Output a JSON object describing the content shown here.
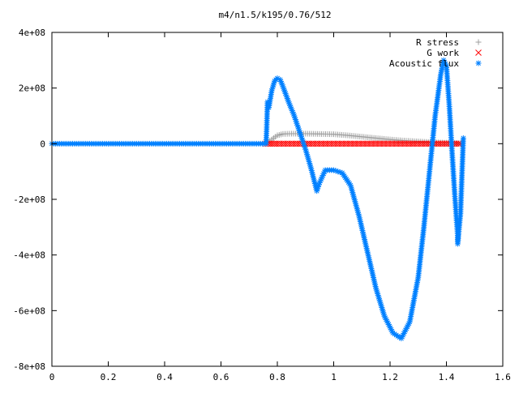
{
  "chart_data": {
    "type": "scatter",
    "title": "m4/n1.5/k195/0.76/512",
    "xlabel": "",
    "ylabel": "",
    "xlim": [
      0,
      1.6
    ],
    "ylim": [
      -800000000,
      400000000
    ],
    "x_ticks": [
      0,
      0.2,
      0.4,
      0.6,
      0.8,
      1.0,
      1.2,
      1.4,
      1.6
    ],
    "x_tick_labels": [
      "0",
      "0.2",
      "0.4",
      "0.6",
      "0.8",
      "1",
      "1.2",
      "1.4",
      "1.6"
    ],
    "y_ticks": [
      400000000,
      200000000,
      0,
      -200000000,
      -400000000,
      -600000000,
      -800000000
    ],
    "y_tick_labels": [
      "4e+08",
      "2e+08",
      "0",
      "-2e+08",
      "-4e+08",
      "-6e+08",
      "-8e+08"
    ],
    "grid": false,
    "legend_position": "top-right",
    "series": [
      {
        "name": "R stress",
        "marker": "plus",
        "color": "#a0a0a0",
        "points": [
          [
            0.76,
            0
          ],
          [
            0.78,
            15000000
          ],
          [
            0.8,
            30000000
          ],
          [
            0.82,
            35000000
          ],
          [
            0.85,
            36000000
          ],
          [
            0.9,
            36000000
          ],
          [
            0.95,
            35000000
          ],
          [
            1.0,
            34000000
          ],
          [
            1.05,
            30000000
          ],
          [
            1.1,
            25000000
          ],
          [
            1.15,
            20000000
          ],
          [
            1.2,
            15000000
          ],
          [
            1.25,
            11000000
          ],
          [
            1.3,
            8000000
          ],
          [
            1.35,
            5000000
          ],
          [
            1.4,
            3000000
          ],
          [
            1.45,
            1000000
          ]
        ]
      },
      {
        "name": "G work",
        "marker": "cross",
        "color": "#ff0000",
        "points": [
          [
            0.76,
            0
          ],
          [
            0.8,
            0
          ],
          [
            0.85,
            0
          ],
          [
            0.9,
            0
          ],
          [
            0.95,
            0
          ],
          [
            1.0,
            0
          ],
          [
            1.05,
            0
          ],
          [
            1.1,
            0
          ],
          [
            1.15,
            0
          ],
          [
            1.2,
            0
          ],
          [
            1.25,
            0
          ],
          [
            1.3,
            0
          ],
          [
            1.35,
            0
          ],
          [
            1.4,
            0
          ],
          [
            1.45,
            0
          ]
        ]
      },
      {
        "name": "Acoustic flux",
        "marker": "star",
        "color": "#0080ff",
        "points": [
          [
            0.0,
            0
          ],
          [
            0.1,
            0
          ],
          [
            0.2,
            0
          ],
          [
            0.3,
            0
          ],
          [
            0.4,
            0
          ],
          [
            0.5,
            0
          ],
          [
            0.6,
            0
          ],
          [
            0.7,
            0
          ],
          [
            0.76,
            0
          ],
          [
            0.762,
            50000000
          ],
          [
            0.765,
            150000000
          ],
          [
            0.77,
            130000000
          ],
          [
            0.78,
            190000000
          ],
          [
            0.79,
            225000000
          ],
          [
            0.8,
            235000000
          ],
          [
            0.81,
            230000000
          ],
          [
            0.82,
            205000000
          ],
          [
            0.84,
            150000000
          ],
          [
            0.86,
            100000000
          ],
          [
            0.88,
            40000000
          ],
          [
            0.9,
            -20000000
          ],
          [
            0.92,
            -90000000
          ],
          [
            0.94,
            -170000000
          ],
          [
            0.95,
            -140000000
          ],
          [
            0.97,
            -95000000
          ],
          [
            1.0,
            -95000000
          ],
          [
            1.03,
            -105000000
          ],
          [
            1.06,
            -150000000
          ],
          [
            1.09,
            -260000000
          ],
          [
            1.12,
            -390000000
          ],
          [
            1.15,
            -520000000
          ],
          [
            1.18,
            -620000000
          ],
          [
            1.21,
            -680000000
          ],
          [
            1.24,
            -700000000
          ],
          [
            1.27,
            -640000000
          ],
          [
            1.3,
            -480000000
          ],
          [
            1.32,
            -300000000
          ],
          [
            1.34,
            -100000000
          ],
          [
            1.36,
            100000000
          ],
          [
            1.38,
            250000000
          ],
          [
            1.39,
            300000000
          ],
          [
            1.4,
            280000000
          ],
          [
            1.41,
            140000000
          ],
          [
            1.42,
            -30000000
          ],
          [
            1.43,
            -190000000
          ],
          [
            1.44,
            -330000000
          ],
          [
            1.44,
            -360000000
          ],
          [
            1.45,
            -250000000
          ],
          [
            1.46,
            20000000
          ]
        ]
      }
    ]
  }
}
